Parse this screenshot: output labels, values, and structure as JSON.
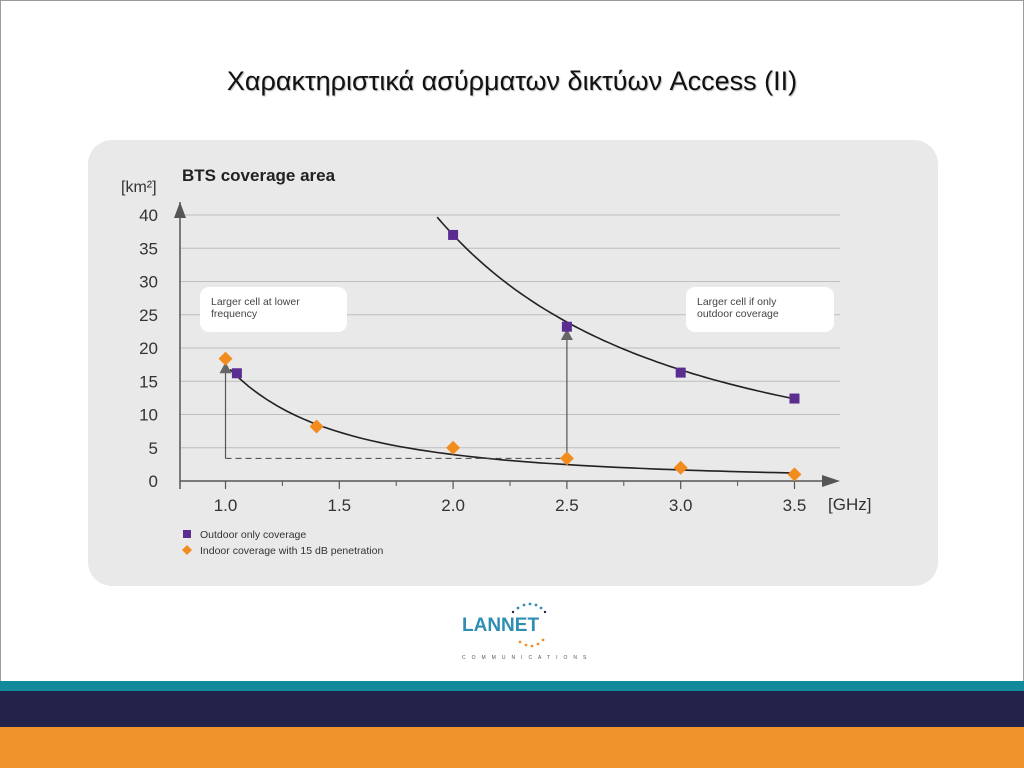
{
  "slide": {
    "title": "Χαρακτηριστικά ασύρματων δικτύων Access (II)"
  },
  "logo": {
    "name": "LANNET",
    "subtitle": "COMMUNICATIONS"
  },
  "colors": {
    "outdoor_series": "#5b2d91",
    "indoor_series": "#f28c1e",
    "teal_band": "#138a9c",
    "navy_band": "#22224a",
    "orange_band": "#f0932b"
  },
  "chart_data": {
    "type": "scatter",
    "title": "BTS coverage area",
    "ylabel": "[km²]",
    "xlabel": "[GHz]",
    "xlim": [
      0.8,
      3.7
    ],
    "ylim": [
      0,
      40
    ],
    "x_ticks": [
      "1.0",
      "1.5",
      "2.0",
      "2.5",
      "3.0",
      "3.5"
    ],
    "x_tick_values": [
      1.0,
      1.5,
      2.0,
      2.5,
      3.0,
      3.5
    ],
    "y_ticks": [
      "0",
      "5",
      "10",
      "15",
      "20",
      "25",
      "30",
      "35",
      "40"
    ],
    "y_tick_values": [
      0,
      5,
      10,
      15,
      20,
      25,
      30,
      35,
      40
    ],
    "grid": true,
    "legend_position": "bottom-left",
    "series": [
      {
        "name": "Outdoor only coverage",
        "marker": "square",
        "color": "#5b2d91",
        "x": [
          1.05,
          2.0,
          2.5,
          3.0,
          3.5
        ],
        "y": [
          16.2,
          37.0,
          23.2,
          16.3,
          12.4
        ]
      },
      {
        "name": "Indoor coverage with 15 dB penetration",
        "marker": "diamond",
        "color": "#f28c1e",
        "x": [
          1.0,
          1.4,
          2.0,
          2.5,
          3.0,
          3.5
        ],
        "y": [
          18.4,
          8.2,
          5.0,
          3.4,
          2.0,
          1.0
        ]
      }
    ],
    "annotations": [
      {
        "text": "Larger cell at lower frequency",
        "anchor": "upper-left"
      },
      {
        "text": "Larger cell if only outdoor coverage",
        "anchor": "upper-right"
      }
    ]
  }
}
